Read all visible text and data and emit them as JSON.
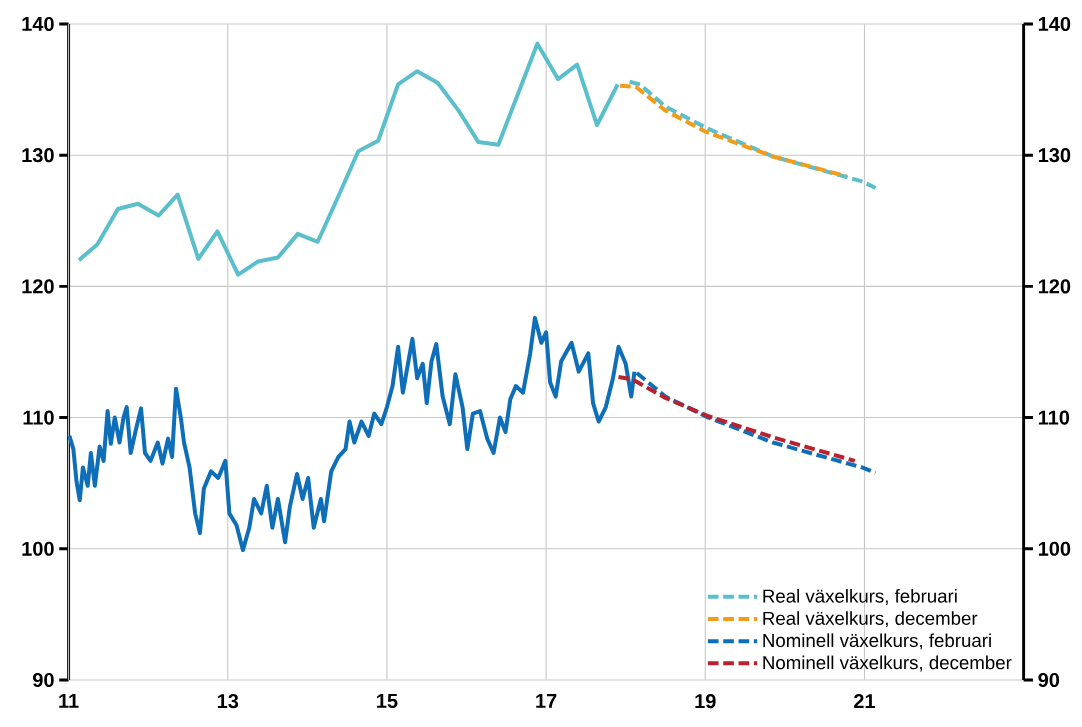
{
  "chart_data": {
    "type": "line",
    "xlim": [
      11,
      23
    ],
    "xticks": [
      11,
      13,
      15,
      17,
      19,
      21
    ],
    "ylim": [
      90,
      140
    ],
    "yticks": [
      90,
      100,
      110,
      120,
      130,
      140
    ],
    "y2lim": [
      90,
      140
    ],
    "y2ticks": [
      90,
      100,
      110,
      120,
      130,
      140
    ],
    "grid": true,
    "legend": "bottom right",
    "marker": "none",
    "series": [
      {
        "color": "#5bbfcb",
        "line_style": "solid",
        "x": [
          11.13,
          11.36,
          11.62,
          11.87,
          12.13,
          12.37,
          12.63,
          12.87,
          13.13,
          13.38,
          13.63,
          13.88,
          14.13,
          14.37,
          14.64,
          14.89,
          15.14,
          15.38,
          15.64,
          15.9,
          16.15,
          16.4,
          16.89,
          17.15,
          17.39,
          17.64,
          17.9
        ],
        "values": [
          122.0,
          123.2,
          125.9,
          126.3,
          125.4,
          127.0,
          122.1,
          124.2,
          120.9,
          121.9,
          122.2,
          124.0,
          123.4,
          126.6,
          130.3,
          131.1,
          135.4,
          136.4,
          135.5,
          133.4,
          131.0,
          130.8,
          138.5,
          135.8,
          136.9,
          132.3,
          135.4
        ]
      },
      {
        "color": "#0f6eb8",
        "line_style": "solid",
        "x": [
          11.01,
          11.06,
          11.1,
          11.14,
          11.18,
          11.24,
          11.28,
          11.33,
          11.39,
          11.44,
          11.49,
          11.53,
          11.58,
          11.64,
          11.69,
          11.73,
          11.78,
          11.85,
          11.91,
          11.96,
          12.03,
          12.12,
          12.18,
          12.25,
          12.3,
          12.35,
          12.41,
          12.45,
          12.52,
          12.59,
          12.65,
          12.7,
          12.79,
          12.88,
          12.97,
          13.02,
          13.11,
          13.19,
          13.27,
          13.33,
          13.42,
          13.49,
          13.56,
          13.63,
          13.72,
          13.78,
          13.87,
          13.94,
          14.01,
          14.08,
          14.17,
          14.21,
          14.3,
          14.39,
          14.48,
          14.53,
          14.59,
          14.68,
          14.77,
          14.84,
          14.93,
          15.0,
          15.07,
          15.14,
          15.2,
          15.32,
          15.38,
          15.45,
          15.5,
          15.56,
          15.62,
          15.7,
          15.79,
          15.86,
          15.95,
          16.01,
          16.08,
          16.17,
          16.26,
          16.34,
          16.42,
          16.49,
          16.55,
          16.62,
          16.71,
          16.8,
          16.86,
          16.94,
          17.0,
          17.05,
          17.12,
          17.19,
          17.32,
          17.41,
          17.53,
          17.59,
          17.66,
          17.75,
          17.84,
          17.91,
          18.0,
          18.07,
          18.11
        ],
        "values": [
          108.6,
          107.6,
          105.1,
          103.7,
          106.2,
          104.8,
          107.3,
          104.8,
          107.8,
          106.7,
          110.5,
          108.0,
          110.0,
          108.1,
          110.0,
          110.8,
          107.3,
          109.2,
          110.7,
          107.3,
          106.7,
          108.1,
          106.5,
          108.4,
          107.0,
          112.2,
          110.0,
          108.1,
          106.2,
          102.7,
          101.2,
          104.6,
          105.9,
          105.4,
          106.7,
          102.7,
          101.8,
          99.9,
          101.6,
          103.8,
          102.7,
          104.8,
          101.6,
          103.8,
          100.5,
          103.2,
          105.7,
          103.8,
          105.4,
          101.6,
          103.8,
          102.1,
          105.9,
          107.0,
          107.6,
          109.7,
          108.1,
          109.7,
          108.6,
          110.3,
          109.5,
          110.8,
          112.4,
          115.4,
          111.9,
          116.0,
          113.0,
          114.1,
          111.1,
          114.3,
          115.6,
          111.6,
          109.5,
          113.3,
          110.8,
          107.6,
          110.3,
          110.5,
          108.4,
          107.3,
          110.0,
          108.9,
          111.4,
          112.4,
          111.9,
          114.9,
          117.6,
          115.7,
          116.5,
          112.7,
          111.6,
          114.3,
          115.7,
          113.5,
          114.9,
          111.1,
          109.7,
          110.8,
          113.0,
          115.4,
          114.1,
          111.6,
          113.5
        ]
      },
      {
        "name": "Real växelkurs, februari",
        "color": "#5bbfcb",
        "line_style": "dashed",
        "x": [
          18.05,
          18.18,
          18.5,
          19.04,
          19.85,
          20.97,
          21.14
        ],
        "values": [
          135.6,
          135.4,
          133.7,
          132.0,
          129.9,
          128.0,
          127.5
        ]
      },
      {
        "name": "Real växelkurs, december",
        "color": "#f39c1a",
        "line_style": "dashed",
        "x": [
          17.93,
          18.13,
          18.5,
          19.0,
          19.85,
          20.77
        ],
        "values": [
          135.3,
          135.2,
          133.4,
          131.8,
          129.9,
          128.4
        ]
      },
      {
        "name": "Nominell växelkurs, februari",
        "color": "#0f6eb8",
        "line_style": "dashed",
        "x": [
          18.14,
          18.5,
          19.04,
          19.85,
          20.97,
          21.14
        ],
        "values": [
          113.4,
          111.6,
          110.0,
          108.1,
          106.2,
          105.8
        ]
      },
      {
        "name": "Nominell växelkurs, december",
        "color": "#b8222f",
        "line_style": "dashed",
        "x": [
          17.91,
          18.09,
          18.5,
          19.04,
          19.85,
          20.88
        ],
        "values": [
          113.1,
          112.9,
          111.5,
          110.1,
          108.5,
          106.7
        ]
      }
    ]
  }
}
